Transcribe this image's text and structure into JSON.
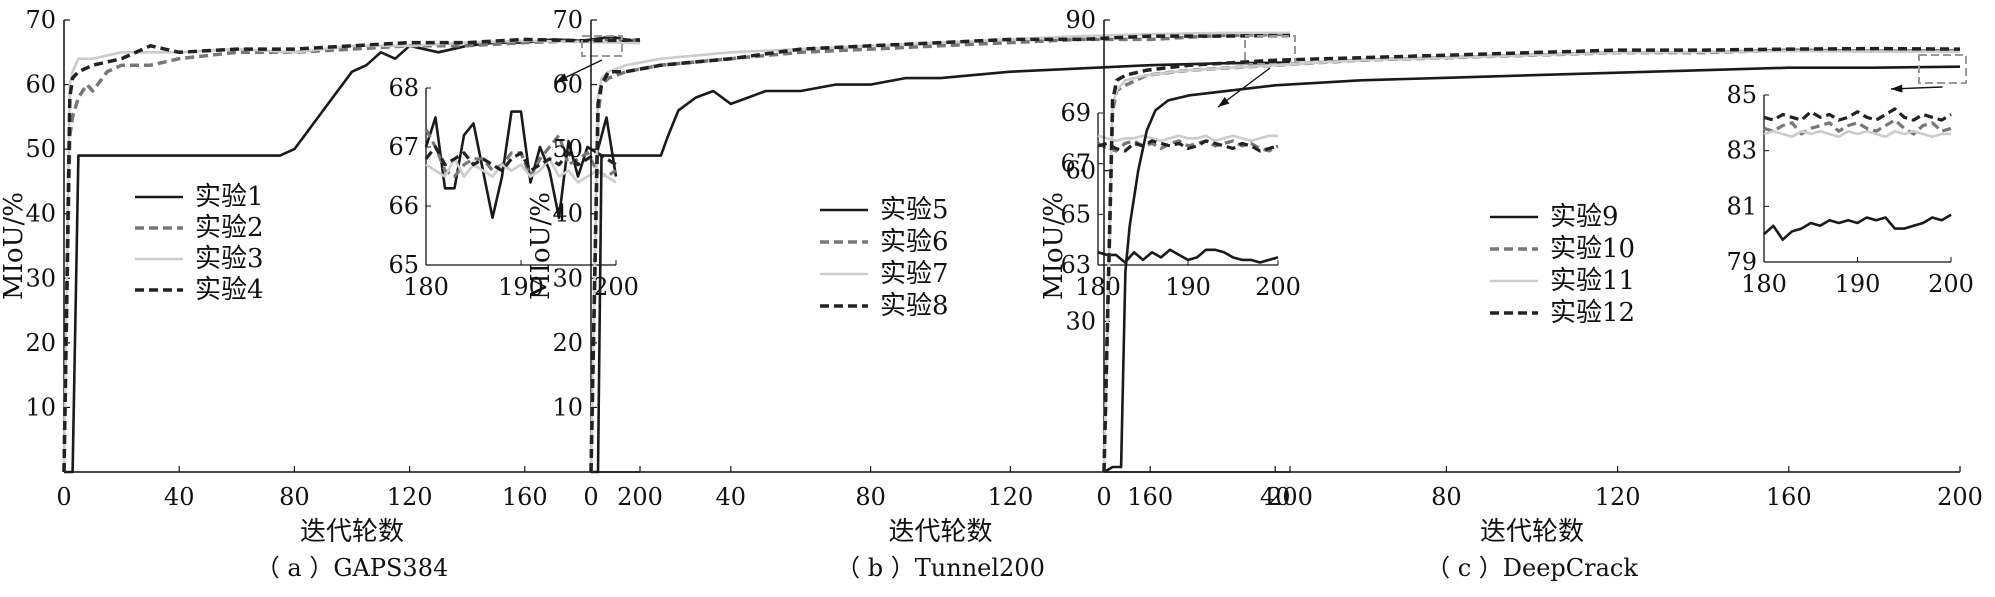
{
  "chart_data": [
    {
      "type": "line",
      "caption": "（ a ）GAPS384",
      "xlabel": "迭代轮数",
      "ylabel": "MIoU/%",
      "xlim": [
        0,
        200
      ],
      "ylim": [
        0,
        70
      ],
      "xticks": [
        0,
        40,
        80,
        120,
        160,
        200
      ],
      "yticks": [
        10,
        20,
        30,
        40,
        50,
        60,
        70
      ],
      "legend_position": "middle-left",
      "grid": false,
      "series": [
        {
          "name": "实验1",
          "style": "solid",
          "color": "#1a1a1a",
          "x": [
            0,
            3,
            5,
            10,
            20,
            40,
            60,
            75,
            80,
            85,
            90,
            95,
            100,
            105,
            110,
            115,
            120,
            130,
            140,
            150,
            160,
            170,
            180,
            190,
            200
          ],
          "y": [
            0,
            0,
            49,
            49,
            49,
            49,
            49,
            49,
            50,
            53,
            56,
            59,
            62,
            63,
            65,
            64,
            66,
            65,
            66,
            66.5,
            66.5,
            67,
            66.8,
            67.4,
            66.6
          ]
        },
        {
          "name": "实验2",
          "style": "dash",
          "color": "#777777",
          "x": [
            0,
            2,
            3,
            5,
            8,
            10,
            15,
            20,
            30,
            40,
            60,
            80,
            100,
            120,
            140,
            160,
            180,
            200
          ],
          "y": [
            0,
            52,
            55,
            58,
            60,
            59,
            62,
            63,
            63,
            64,
            65,
            65,
            65.5,
            66,
            66,
            66.5,
            66.8,
            66.9
          ]
        },
        {
          "name": "实验3",
          "style": "solid",
          "color": "#cccccc",
          "x": [
            0,
            2,
            3,
            5,
            10,
            20,
            40,
            60,
            80,
            100,
            120,
            140,
            160,
            180,
            200
          ],
          "y": [
            0,
            60,
            62,
            64,
            64,
            65,
            65,
            65.5,
            65,
            66,
            66,
            66.5,
            66.8,
            66.6,
            66.4
          ]
        },
        {
          "name": "实验4",
          "style": "dash",
          "color": "#222222",
          "x": [
            0,
            2,
            3,
            5,
            10,
            20,
            30,
            40,
            60,
            80,
            100,
            120,
            140,
            160,
            180,
            200
          ],
          "y": [
            0,
            58,
            61,
            62,
            63,
            64,
            66,
            65,
            65.5,
            65.5,
            66,
            66.5,
            66.5,
            67,
            66.8,
            66.9
          ]
        }
      ],
      "inset": {
        "xlim": [
          180,
          200
        ],
        "ylim": [
          65,
          68
        ],
        "xticks": [
          180,
          190,
          200
        ],
        "yticks": [
          65,
          66,
          67,
          68
        ],
        "x": [
          180,
          181,
          182,
          183,
          184,
          185,
          186,
          187,
          188,
          189,
          190,
          191,
          192,
          193,
          194,
          195,
          196,
          197,
          198,
          199,
          200
        ],
        "series": [
          {
            "y": [
              67.0,
              67.5,
              66.3,
              66.3,
              67.2,
              67.4,
              66.6,
              65.8,
              66.5,
              67.6,
              67.6,
              66.4,
              67.0,
              66.6,
              65.8,
              67.1,
              66.5,
              67.0,
              66.9,
              67.5,
              66.5
            ]
          },
          {
            "y": [
              67.3,
              67.0,
              66.6,
              66.5,
              66.7,
              66.8,
              66.8,
              66.6,
              66.7,
              66.9,
              66.9,
              66.5,
              66.8,
              67.0,
              67.2,
              66.7,
              66.8,
              66.9,
              66.6,
              66.5,
              66.6
            ]
          },
          {
            "y": [
              66.7,
              66.6,
              66.5,
              66.8,
              66.5,
              66.7,
              66.6,
              66.5,
              66.7,
              66.6,
              66.7,
              66.5,
              66.6,
              66.8,
              66.5,
              66.6,
              66.4,
              66.5,
              66.6,
              66.5,
              66.4
            ]
          },
          {
            "y": [
              66.8,
              67.0,
              66.7,
              66.8,
              66.9,
              66.7,
              66.8,
              66.7,
              66.6,
              66.8,
              66.9,
              66.6,
              66.7,
              66.8,
              66.7,
              66.9,
              66.7,
              66.8,
              66.9,
              66.8,
              66.7
            ]
          }
        ]
      }
    },
    {
      "type": "line",
      "caption": "（ b ）Tunnel200",
      "xlabel": "迭代轮数",
      "ylabel": "MIoU/%",
      "xlim": [
        0,
        200
      ],
      "ylim": [
        0,
        70
      ],
      "xticks": [
        0,
        40,
        80,
        120,
        160,
        200
      ],
      "yticks": [
        10,
        20,
        30,
        40,
        50,
        60,
        70
      ],
      "legend_position": "middle-left",
      "grid": false,
      "series": [
        {
          "name": "实验5",
          "style": "solid",
          "color": "#1a1a1a",
          "x": [
            0,
            2,
            3,
            5,
            10,
            20,
            22,
            25,
            30,
            35,
            40,
            45,
            50,
            60,
            70,
            80,
            90,
            100,
            120,
            140,
            160,
            180,
            200
          ],
          "y": [
            0,
            0,
            49,
            49,
            49,
            49,
            52,
            56,
            58,
            59,
            57,
            58,
            59,
            59,
            60,
            60,
            61,
            61,
            62,
            62.5,
            63,
            63.3,
            63.4
          ]
        },
        {
          "name": "实验6",
          "style": "dash",
          "color": "#777777",
          "x": [
            0,
            2,
            3,
            5,
            10,
            20,
            40,
            60,
            80,
            100,
            120,
            140,
            160,
            180,
            200
          ],
          "y": [
            0,
            55,
            60,
            61,
            62,
            63,
            64,
            65,
            65.5,
            66,
            66.5,
            67,
            67,
            67.6,
            67.8
          ]
        },
        {
          "name": "实验7",
          "style": "solid",
          "color": "#cccccc",
          "x": [
            0,
            2,
            3,
            5,
            10,
            20,
            40,
            60,
            80,
            100,
            120,
            140,
            160,
            180,
            200
          ],
          "y": [
            0,
            58,
            61,
            62,
            63,
            64,
            65,
            65.5,
            66,
            66.5,
            67,
            67.5,
            67.8,
            68,
            68
          ]
        },
        {
          "name": "实验8",
          "style": "dash",
          "color": "#222222",
          "x": [
            0,
            2,
            3,
            5,
            10,
            20,
            40,
            60,
            80,
            100,
            120,
            140,
            160,
            180,
            200
          ],
          "y": [
            0,
            57,
            60,
            62,
            62,
            63,
            64,
            65.5,
            66,
            66.5,
            67,
            67,
            67.5,
            67.5,
            67.6
          ]
        }
      ],
      "inset": {
        "xlim": [
          180,
          200
        ],
        "ylim": [
          63,
          69
        ],
        "xticks": [
          180,
          190,
          200
        ],
        "yticks": [
          63,
          65,
          67,
          69
        ],
        "x": [
          180,
          181,
          182,
          183,
          184,
          185,
          186,
          187,
          188,
          189,
          190,
          191,
          192,
          193,
          194,
          195,
          196,
          197,
          198,
          199,
          200
        ],
        "series": [
          {
            "y": [
              63.5,
              63.4,
              63.4,
              63.1,
              63.5,
              63.2,
              63.5,
              63.3,
              63.6,
              63.4,
              63.2,
              63.3,
              63.6,
              63.6,
              63.5,
              63.3,
              63.2,
              63.2,
              63.1,
              63.2,
              63.3
            ]
          },
          {
            "y": [
              67.8,
              67.6,
              67.5,
              67.8,
              67.9,
              67.7,
              67.8,
              67.6,
              67.8,
              67.9,
              67.7,
              67.8,
              67.9,
              67.7,
              67.8,
              67.9,
              67.7,
              67.8,
              67.6,
              67.5,
              67.7
            ]
          },
          {
            "y": [
              68.1,
              68.0,
              67.9,
              68.0,
              68.0,
              68.1,
              68.0,
              67.9,
              68.0,
              68.1,
              68.0,
              68.0,
              68.1,
              67.9,
              68.0,
              68.1,
              68.0,
              67.9,
              68.0,
              68.1,
              68.1
            ]
          },
          {
            "y": [
              67.7,
              67.8,
              67.6,
              67.5,
              67.8,
              67.7,
              67.9,
              67.8,
              67.7,
              67.8,
              67.6,
              67.7,
              67.9,
              67.8,
              67.7,
              67.6,
              67.8,
              67.7,
              67.5,
              67.6,
              67.7
            ]
          }
        ]
      }
    },
    {
      "type": "line",
      "caption": "（ c ）DeepCrack",
      "xlabel": "迭代轮数",
      "ylabel": "MIoU/%",
      "xlim": [
        0,
        200
      ],
      "ylim": [
        0,
        90
      ],
      "xticks": [
        0,
        40,
        80,
        120,
        160,
        200
      ],
      "yticks": [
        30,
        60,
        90
      ],
      "legend_position": "middle-left",
      "grid": false,
      "series": [
        {
          "name": "实验9",
          "style": "solid",
          "color": "#1a1a1a",
          "x": [
            0,
            2,
            4,
            5,
            6,
            8,
            10,
            12,
            15,
            20,
            30,
            40,
            60,
            80,
            100,
            120,
            140,
            160,
            180,
            200
          ],
          "y": [
            0,
            1,
            1,
            40,
            49,
            60,
            68,
            72,
            74,
            75,
            76,
            77,
            78,
            78.5,
            79,
            79.5,
            80,
            80.5,
            80.5,
            80.7
          ]
        },
        {
          "name": "实验10",
          "style": "dash",
          "color": "#777777",
          "x": [
            0,
            2,
            3,
            5,
            10,
            20,
            40,
            60,
            80,
            100,
            120,
            140,
            160,
            180,
            200
          ],
          "y": [
            0,
            72,
            76,
            77,
            79,
            80,
            81,
            82,
            82.5,
            83,
            83.5,
            83.5,
            84,
            83.8,
            83.9
          ]
        },
        {
          "name": "实验11",
          "style": "solid",
          "color": "#cccccc",
          "x": [
            0,
            2,
            3,
            5,
            10,
            20,
            40,
            60,
            80,
            100,
            120,
            140,
            160,
            180,
            200
          ],
          "y": [
            0,
            73,
            76,
            78,
            79,
            80,
            81,
            82,
            82.5,
            83,
            83.5,
            83.6,
            83.8,
            83.7,
            83.7
          ]
        },
        {
          "name": "实验12",
          "style": "dash",
          "color": "#222222",
          "x": [
            0,
            2,
            3,
            5,
            10,
            20,
            40,
            60,
            80,
            100,
            120,
            140,
            160,
            180,
            200
          ],
          "y": [
            0,
            74,
            78,
            79,
            80,
            81,
            82,
            82.5,
            83,
            83.5,
            84,
            84,
            84.2,
            84.3,
            84.2
          ]
        }
      ],
      "inset": {
        "xlim": [
          180,
          200
        ],
        "ylim": [
          79,
          85
        ],
        "xticks": [
          180,
          190,
          200
        ],
        "yticks": [
          79,
          81,
          83,
          85
        ],
        "x": [
          180,
          181,
          182,
          183,
          184,
          185,
          186,
          187,
          188,
          189,
          190,
          191,
          192,
          193,
          194,
          195,
          196,
          197,
          198,
          199,
          200
        ],
        "series": [
          {
            "y": [
              80.0,
              80.3,
              79.8,
              80.1,
              80.2,
              80.4,
              80.3,
              80.5,
              80.4,
              80.5,
              80.4,
              80.6,
              80.5,
              80.6,
              80.2,
              80.2,
              80.3,
              80.4,
              80.6,
              80.5,
              80.7
            ]
          },
          {
            "y": [
              83.8,
              83.7,
              83.9,
              84.0,
              83.6,
              83.8,
              83.9,
              84.0,
              83.7,
              83.9,
              84.0,
              83.8,
              83.7,
              83.9,
              84.1,
              83.8,
              83.6,
              83.9,
              84.0,
              83.7,
              83.8
            ]
          },
          {
            "y": [
              83.6,
              83.7,
              83.6,
              83.5,
              83.7,
              83.6,
              83.7,
              83.6,
              83.5,
              83.7,
              83.6,
              83.7,
              83.6,
              83.5,
              83.7,
              83.6,
              83.7,
              83.6,
              83.5,
              83.6,
              83.6
            ]
          },
          {
            "y": [
              84.2,
              84.1,
              84.3,
              84.2,
              84.1,
              84.4,
              84.2,
              84.3,
              84.1,
              84.2,
              84.4,
              84.2,
              84.1,
              84.3,
              84.5,
              84.2,
              84.1,
              84.3,
              84.2,
              84.1,
              84.3
            ]
          }
        ]
      }
    }
  ]
}
